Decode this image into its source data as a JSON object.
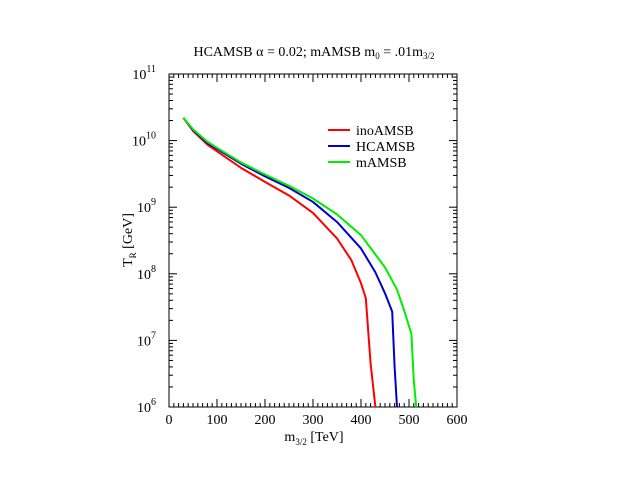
{
  "chart_data": {
    "type": "line",
    "title": "HCAMSB α = 0.02; mAMSB m",
    "title_sub1": "0",
    "title_mid": " = .01m",
    "title_sub2": "3/2",
    "xlabel": "m",
    "xlabel_sub": "3/2",
    "xlabel_tail": " [TeV]",
    "ylabel": "T",
    "ylabel_sub": "R",
    "ylabel_tail": " [GeV]",
    "xlim": [
      0,
      600
    ],
    "ylim_log10": [
      6,
      11
    ],
    "y_scale": "log",
    "grid": false,
    "legend_position": "top-right",
    "x_ticks": [
      "0",
      "100",
      "200",
      "300",
      "400",
      "500",
      "600"
    ],
    "y_ticks": [
      {
        "base": "10",
        "exp": "6"
      },
      {
        "base": "10",
        "exp": "7"
      },
      {
        "base": "10",
        "exp": "8"
      },
      {
        "base": "10",
        "exp": "9"
      },
      {
        "base": "10",
        "exp": "10"
      },
      {
        "base": "10",
        "exp": "11"
      }
    ],
    "series": [
      {
        "name": "inoAMSB",
        "color": "#ff0000",
        "points": [
          [
            30,
            22000000000.0
          ],
          [
            50,
            14000000000.0
          ],
          [
            80,
            8700000000.0
          ],
          [
            100,
            6900000000.0
          ],
          [
            150,
            3900000000.0
          ],
          [
            200,
            2400000000.0
          ],
          [
            250,
            1500000000.0
          ],
          [
            300,
            820000000.0
          ],
          [
            350,
            340000000.0
          ],
          [
            380,
            160000000.0
          ],
          [
            400,
            72000000.0
          ],
          [
            410,
            43000000.0
          ],
          [
            420,
            4500000.0
          ],
          [
            430,
            1000000.0
          ]
        ]
      },
      {
        "name": "HCAMSB",
        "color": "#0000cc",
        "points": [
          [
            30,
            22000000000.0
          ],
          [
            50,
            14500000000.0
          ],
          [
            80,
            9200000000.0
          ],
          [
            100,
            7500000000.0
          ],
          [
            150,
            4500000000.0
          ],
          [
            200,
            2900000000.0
          ],
          [
            250,
            1950000000.0
          ],
          [
            300,
            1200000000.0
          ],
          [
            350,
            600000000.0
          ],
          [
            400,
            240000000.0
          ],
          [
            430,
            105000000.0
          ],
          [
            450,
            51000000.0
          ],
          [
            465,
            27000000.0
          ],
          [
            470,
            4000000.0
          ],
          [
            475,
            1000000.0
          ]
        ]
      },
      {
        "name": "mAMSB",
        "color": "#00ee00",
        "points": [
          [
            30,
            22000000000.0
          ],
          [
            50,
            14800000000.0
          ],
          [
            80,
            9600000000.0
          ],
          [
            100,
            7800000000.0
          ],
          [
            150,
            4700000000.0
          ],
          [
            200,
            3100000000.0
          ],
          [
            250,
            2100000000.0
          ],
          [
            300,
            1350000000.0
          ],
          [
            350,
            780000000.0
          ],
          [
            400,
            380000000.0
          ],
          [
            450,
            125000000.0
          ],
          [
            475,
            58000000.0
          ],
          [
            490,
            28000000.0
          ],
          [
            505,
            12500000.0
          ],
          [
            510,
            2500000.0
          ],
          [
            515,
            1000000.0
          ]
        ]
      }
    ]
  }
}
